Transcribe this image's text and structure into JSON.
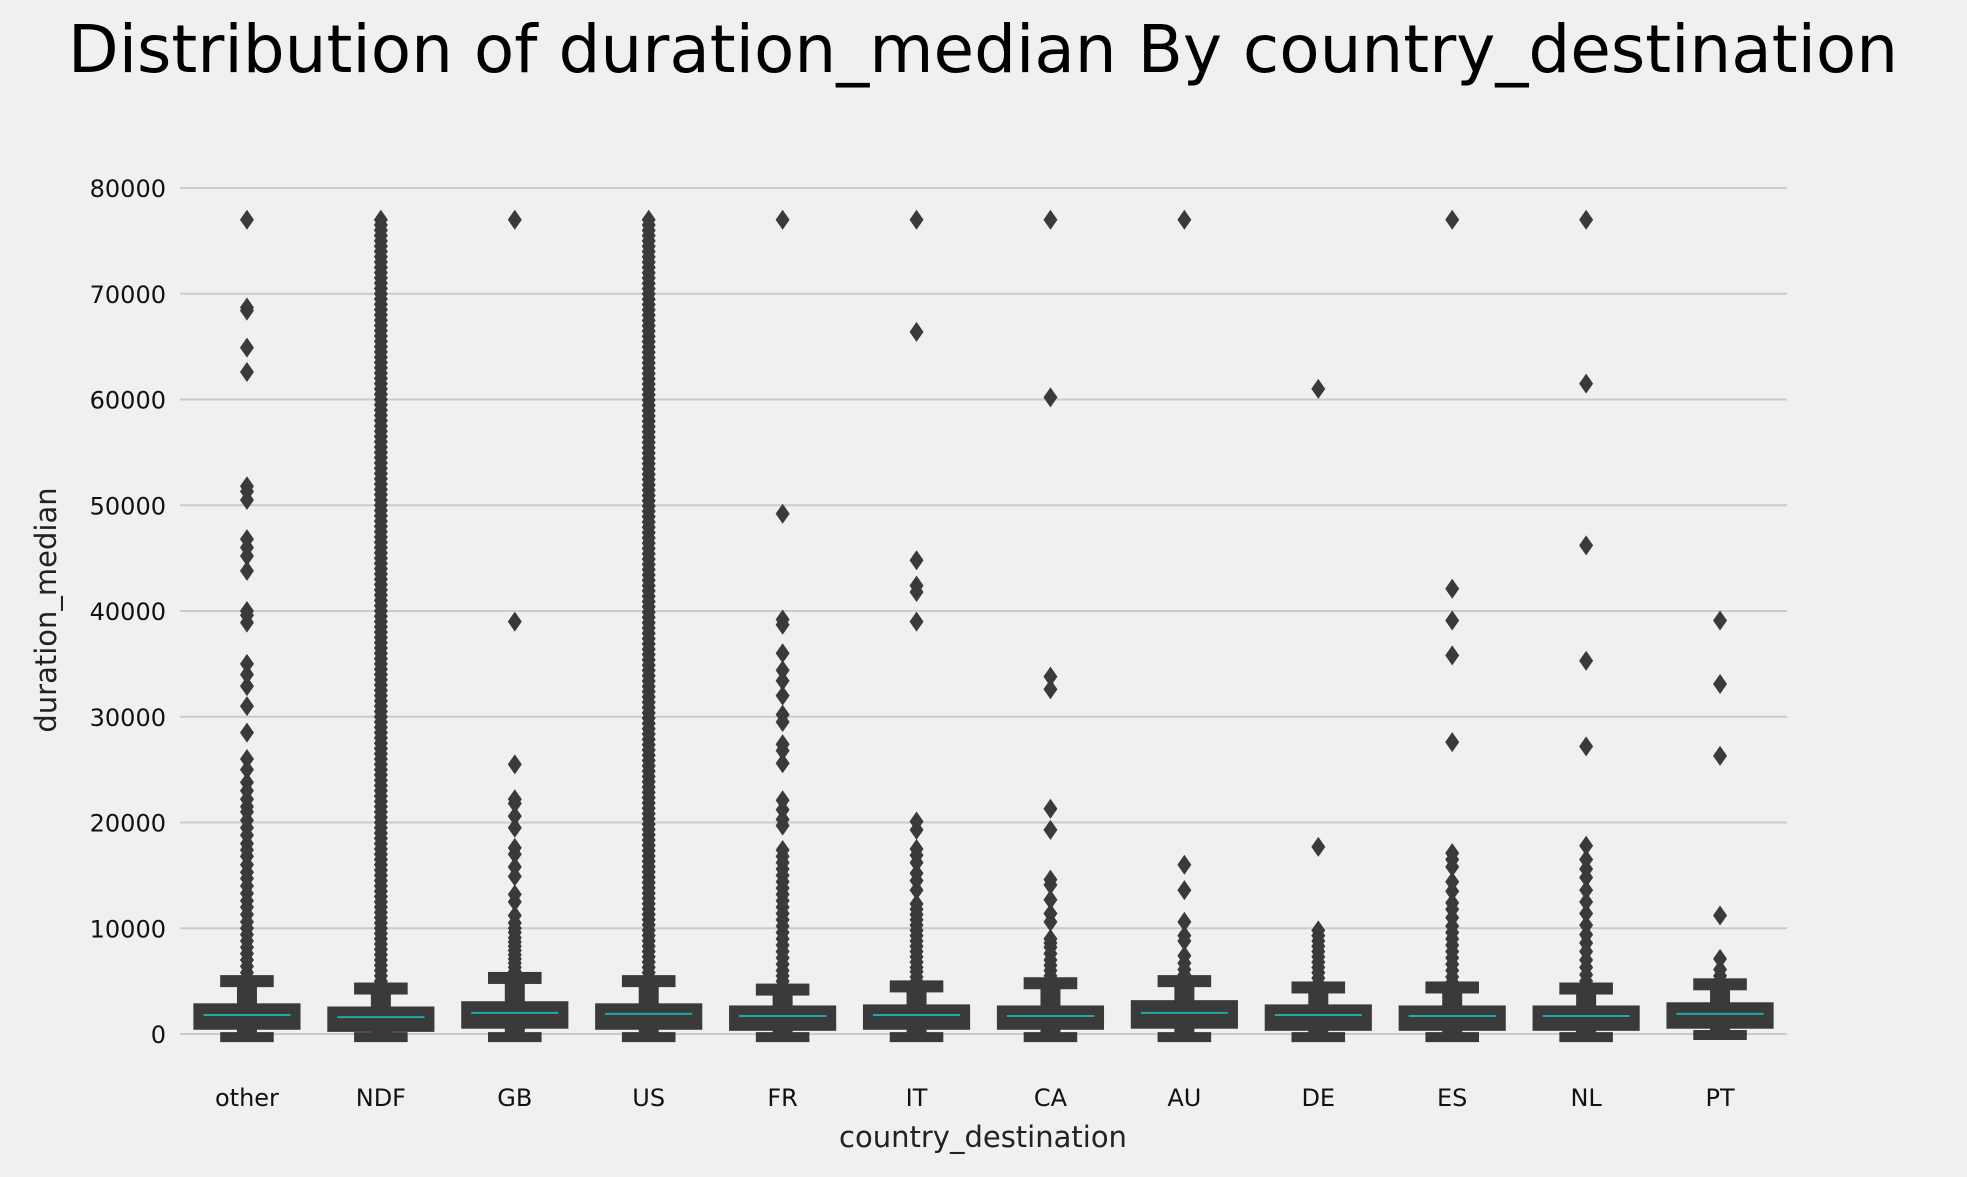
{
  "chart_data": {
    "type": "boxplot",
    "title": "Distribution of duration_median By country_destination",
    "xlabel": "country_destination",
    "ylabel": "duration_median",
    "ylim": [
      0,
      80000
    ],
    "yticks": [
      0,
      10000,
      20000,
      30000,
      40000,
      50000,
      60000,
      70000,
      80000
    ],
    "grid": "horizontal",
    "colors": {
      "box": "#3a3a3a",
      "median": "#21a8a8",
      "background": "#f0f0f0",
      "grid": "#cbcbcb"
    },
    "categories": [
      "other",
      "NDF",
      "GB",
      "US",
      "FR",
      "IT",
      "CA",
      "AU",
      "DE",
      "ES",
      "NL",
      "PT"
    ],
    "boxes": [
      {
        "category": "other",
        "q1": 400,
        "median": 1800,
        "q3": 2900,
        "whisker_low": -200,
        "whisker_high": 5000,
        "outliers": [
          77000,
          68700,
          68400,
          64900,
          62600,
          51800,
          51300,
          50500,
          46800,
          46000,
          45200,
          43800,
          40000,
          39600,
          38900,
          35000,
          34000,
          32900,
          31000,
          28500,
          26000,
          25000,
          23800,
          23000,
          22200,
          21500,
          21000,
          20200,
          19500,
          18800,
          18000,
          17400,
          16800,
          16000,
          15300,
          14700,
          14000,
          13300,
          12600,
          12000,
          11300,
          10600,
          10000,
          9400,
          8800,
          8200,
          7600,
          7000,
          6400,
          5800,
          5300
        ]
      },
      {
        "category": "NDF",
        "q1": 200,
        "median": 1600,
        "q3": 2600,
        "whisker_low": -200,
        "whisker_high": 4300,
        "outlier_range": [
          4500,
          77000
        ]
      },
      {
        "category": "GB",
        "q1": 500,
        "median": 2000,
        "q3": 3100,
        "whisker_low": -200,
        "whisker_high": 5300,
        "outliers": [
          77000,
          39000,
          25500,
          22200,
          21800,
          20600,
          19500,
          17600,
          17000,
          15800,
          14900,
          13200,
          12500,
          11200,
          10500,
          10000,
          9600,
          9100,
          8700,
          8300,
          7900,
          7500,
          7100,
          6700,
          6300,
          5900,
          5600
        ]
      },
      {
        "category": "US",
        "q1": 400,
        "median": 1900,
        "q3": 2900,
        "whisker_low": -200,
        "whisker_high": 5000,
        "outlier_range": [
          5300,
          77000
        ]
      },
      {
        "category": "FR",
        "q1": 300,
        "median": 1700,
        "q3": 2700,
        "whisker_low": -200,
        "whisker_high": 4200,
        "outliers": [
          77000,
          49200,
          39200,
          38700,
          36000,
          34400,
          33400,
          32000,
          30200,
          29500,
          27400,
          26800,
          25600,
          22100,
          21200,
          20300,
          19700,
          17400,
          16800,
          16200,
          15600,
          15000,
          14400,
          13800,
          13200,
          12600,
          12000,
          11400,
          10800,
          10200,
          9600,
          9000,
          8400,
          7800,
          7200,
          6600,
          6000,
          5500,
          5000,
          4600
        ]
      },
      {
        "category": "IT",
        "q1": 400,
        "median": 1800,
        "q3": 2800,
        "whisker_low": -200,
        "whisker_high": 4500,
        "outliers": [
          77000,
          66400,
          44800,
          42400,
          41800,
          39000,
          20100,
          19300,
          17500,
          16900,
          16200,
          15200,
          14500,
          13600,
          12300,
          11800,
          11300,
          10800,
          10300,
          9800,
          9300,
          8800,
          8300,
          7800,
          7300,
          6800,
          6300,
          5900,
          5400,
          5000
        ]
      },
      {
        "category": "CA",
        "q1": 400,
        "median": 1700,
        "q3": 2700,
        "whisker_low": -200,
        "whisker_high": 4800,
        "outliers": [
          77000,
          60200,
          33800,
          32600,
          21300,
          19300,
          14600,
          14100,
          12700,
          11400,
          10600,
          9000,
          8600,
          8200,
          7600,
          7000,
          6500,
          6000,
          5500,
          5100
        ]
      },
      {
        "category": "AU",
        "q1": 500,
        "median": 2000,
        "q3": 3200,
        "whisker_low": -200,
        "whisker_high": 5000,
        "outliers": [
          77000,
          16000,
          13600,
          10600,
          9300,
          8800,
          7400,
          6700,
          6100,
          5600
        ]
      },
      {
        "category": "DE",
        "q1": 300,
        "median": 1800,
        "q3": 2800,
        "whisker_low": -200,
        "whisker_high": 4400,
        "outliers": [
          61000,
          17700,
          9800,
          9300,
          8800,
          8300,
          7800,
          7300,
          6800,
          6300,
          5800,
          5300,
          4800
        ]
      },
      {
        "category": "ES",
        "q1": 300,
        "median": 1700,
        "q3": 2700,
        "whisker_low": -200,
        "whisker_high": 4400,
        "outliers": [
          77000,
          42100,
          39100,
          35800,
          27600,
          17100,
          16500,
          15800,
          14400,
          13500,
          12400,
          11800,
          11000,
          10200,
          9600,
          9000,
          8400,
          7800,
          7200,
          6600,
          6000,
          5400,
          4900
        ]
      },
      {
        "category": "NL",
        "q1": 300,
        "median": 1700,
        "q3": 2700,
        "whisker_low": -200,
        "whisker_high": 4300,
        "outliers": [
          77000,
          61500,
          46200,
          35300,
          27200,
          17800,
          16500,
          15600,
          14800,
          13600,
          12500,
          11400,
          10300,
          9400,
          8600,
          7800,
          7000,
          6300,
          5600,
          5000
        ]
      },
      {
        "category": "PT",
        "q1": 500,
        "median": 1900,
        "q3": 3000,
        "whisker_low": 0,
        "whisker_high": 4700,
        "outliers": [
          39100,
          33100,
          26300,
          11200,
          7100,
          6100,
          5500,
          5100
        ]
      }
    ]
  }
}
